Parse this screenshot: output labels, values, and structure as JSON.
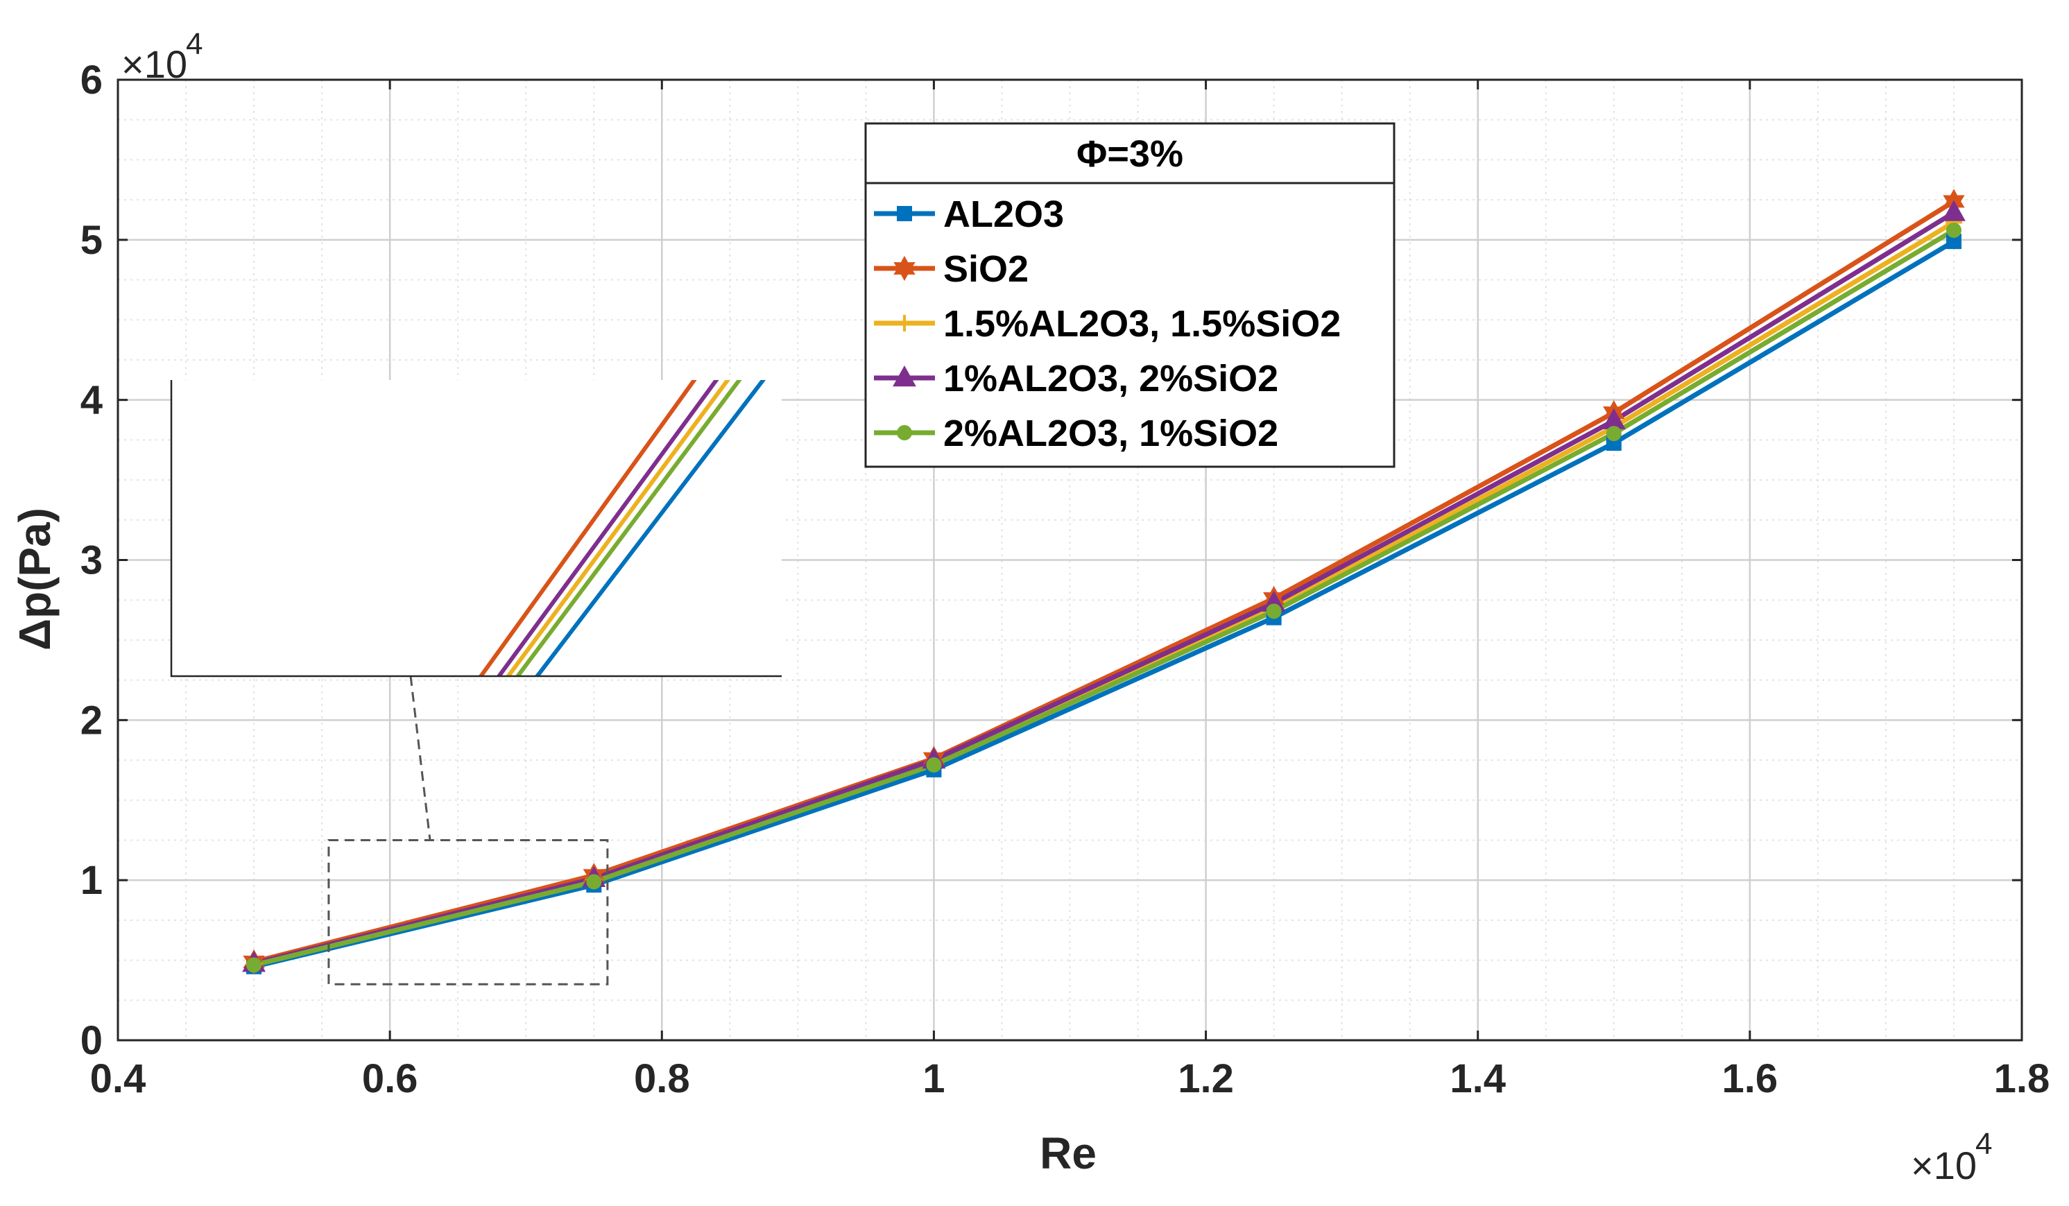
{
  "chart_data": {
    "type": "line",
    "title": "",
    "xlabel": "Re",
    "ylabel": "Δp(Pa)",
    "x_exponent_label": "×10",
    "x_exponent_power": "4",
    "y_exponent_label": "×10",
    "y_exponent_power": "4",
    "xlim": [
      0.4,
      1.8
    ],
    "ylim": [
      0,
      6
    ],
    "xticks": [
      "0.4",
      "0.6",
      "0.8",
      "1",
      "1.2",
      "1.4",
      "1.6",
      "1.8"
    ],
    "yticks": [
      "0",
      "1",
      "2",
      "3",
      "4",
      "5",
      "6"
    ],
    "grid": true,
    "legend_title": "Φ=3%",
    "legend_position": "top-center",
    "x": [
      0.5,
      0.75,
      1.0,
      1.25,
      1.5,
      1.75
    ],
    "series": [
      {
        "name": "AL2O3",
        "color": "#0072BD",
        "marker": "square",
        "values": [
          0.46,
          0.97,
          1.69,
          2.64,
          3.73,
          4.99
        ]
      },
      {
        "name": "SiO2",
        "color": "#D95319",
        "marker": "hexagram",
        "values": [
          0.49,
          1.03,
          1.76,
          2.76,
          3.92,
          5.24
        ]
      },
      {
        "name": "1.5%AL2O3, 1.5%SiO2",
        "color": "#EDB120",
        "marker": "plus",
        "values": [
          0.475,
          1.0,
          1.73,
          2.7,
          3.83,
          5.11
        ]
      },
      {
        "name": "1%AL2O3, 2%SiO2",
        "color": "#7E2F8E",
        "marker": "triangle",
        "values": [
          0.48,
          1.01,
          1.75,
          2.73,
          3.87,
          5.17
        ]
      },
      {
        "name": "2%AL2O3, 1%SiO2",
        "color": "#77AC30",
        "marker": "circle",
        "values": [
          0.47,
          0.99,
          1.72,
          2.68,
          3.79,
          5.06
        ]
      }
    ],
    "inset": {
      "xlim": [
        0.555,
        0.76
      ],
      "ylim": [
        0.35,
        1.25
      ],
      "description_zoom_box": "dashed"
    }
  }
}
